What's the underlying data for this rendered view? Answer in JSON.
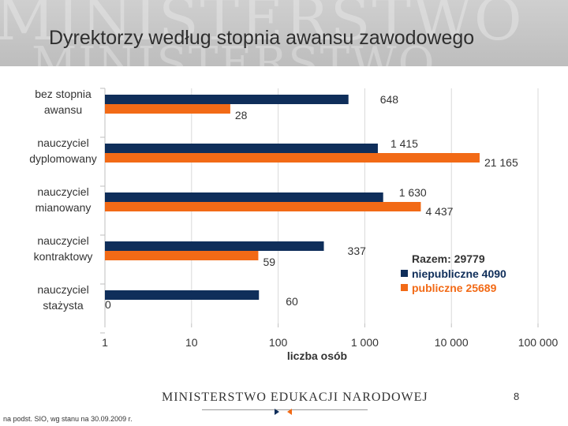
{
  "slide": {
    "title": "Dyrektorzy według stopnia awansu zawodowego",
    "watermark": "MINISTERSTWO",
    "footer_ministry": "MINISTERSTWO EDUKACJI NARODOWEJ",
    "page_number": "8",
    "source": "na podst. SIO, wg stanu na 30.09.2009 r."
  },
  "colors": {
    "niepubliczne": "#0f2e5a",
    "publiczne": "#f26a16",
    "grid": "#d9d9d9",
    "axis": "#bfbfbf",
    "text": "#333333"
  },
  "chart_data": {
    "type": "bar",
    "orientation": "horizontal",
    "x_scale": "log",
    "xlim": [
      1,
      100000
    ],
    "xticks": [
      1,
      10,
      100,
      1000,
      10000,
      100000
    ],
    "xtick_labels": [
      "1",
      "10",
      "100",
      "1 000",
      "10 000",
      "100 000"
    ],
    "xlabel": "liczba osób",
    "categories": [
      [
        "bez stopnia",
        "awansu"
      ],
      [
        "nauczyciel",
        "dyplomowany"
      ],
      [
        "nauczyciel",
        "mianowany"
      ],
      [
        "nauczyciel",
        "kontraktowy"
      ],
      [
        "nauczyciel",
        "stażysta"
      ]
    ],
    "series": [
      {
        "name": "niepubliczne",
        "values": [
          648,
          1415,
          1630,
          337,
          60
        ],
        "labels": [
          "648",
          "1 415",
          "1 630",
          "337",
          "60"
        ]
      },
      {
        "name": "publiczne",
        "values": [
          28,
          21165,
          4437,
          59,
          0
        ],
        "labels": [
          "28",
          "21 165",
          "4 437",
          "59",
          "0"
        ]
      }
    ],
    "legend": {
      "title": "Razem: 29779",
      "entries": [
        "niepubliczne 4090",
        "publiczne 25689"
      ],
      "placement": "lower-right"
    }
  }
}
